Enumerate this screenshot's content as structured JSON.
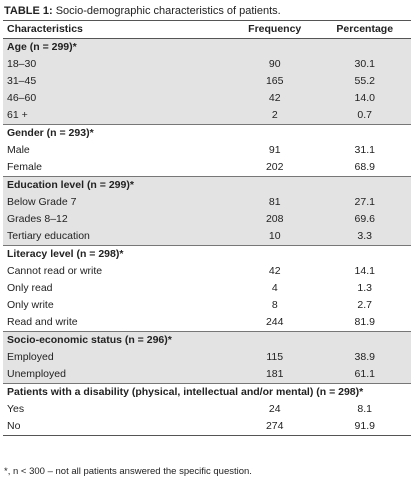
{
  "title": {
    "label": "TABLE 1:",
    "text": "Socio-demographic characteristics of patients."
  },
  "table": {
    "columns": [
      "Characteristics",
      "Frequency",
      "Percentage"
    ],
    "groups": [
      {
        "title": "Age (n = 299)*",
        "rows": [
          [
            "18–30",
            "90",
            "30.1"
          ],
          [
            "31–45",
            "165",
            "55.2"
          ],
          [
            "46–60",
            "42",
            "14.0"
          ],
          [
            "61 +",
            "2",
            "0.7"
          ]
        ]
      },
      {
        "title": "Gender (n = 293)*",
        "rows": [
          [
            "Male",
            "91",
            "31.1"
          ],
          [
            "Female",
            "202",
            "68.9"
          ]
        ]
      },
      {
        "title": "Education level (n = 299)*",
        "rows": [
          [
            "Below Grade 7",
            "81",
            "27.1"
          ],
          [
            "Grades 8–12",
            "208",
            "69.6"
          ],
          [
            "Tertiary education",
            "10",
            "3.3"
          ]
        ]
      },
      {
        "title": "Literacy level (n = 298)*",
        "rows": [
          [
            "Cannot read or write",
            "42",
            "14.1"
          ],
          [
            "Only read",
            "4",
            "1.3"
          ],
          [
            "Only write",
            "8",
            "2.7"
          ],
          [
            "Read and write",
            "244",
            "81.9"
          ]
        ]
      },
      {
        "title": "Socio-economic status (n = 296)*",
        "rows": [
          [
            "Employed",
            "115",
            "38.9"
          ],
          [
            "Unemployed",
            "181",
            "61.1"
          ]
        ]
      },
      {
        "title": "Patients with a disability (physical, intellectual and/or mental) (n = 298)*",
        "rows": [
          [
            "Yes",
            "24",
            "8.1"
          ],
          [
            "No",
            "274",
            "91.9"
          ]
        ]
      }
    ]
  },
  "footnote": "*, n < 300 – not all patients answered the specific question."
}
